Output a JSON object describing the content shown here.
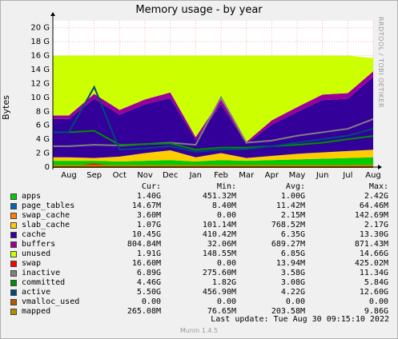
{
  "title": "Memory usage - by year",
  "side_label": "RRDTOOL / TOBI OETIKER",
  "footer": "Munin 1.4.5",
  "last_update": "Last update:  Tue Aug 30 09:15:10 2022",
  "legend_header": {
    "cur": "Cur:",
    "min": "Min:",
    "avg": "Avg:",
    "max": "Max:"
  },
  "legend": [
    {
      "name": "apps",
      "color": "#00cc00",
      "cur": "1.40G",
      "min": "451.32M",
      "avg": "1.00G",
      "max": "2.42G"
    },
    {
      "name": "page_tables",
      "color": "#0066b3",
      "cur": "14.67M",
      "min": "8.40M",
      "avg": "11.42M",
      "max": "64.46M"
    },
    {
      "name": "swap_cache",
      "color": "#ff8000",
      "cur": "3.60M",
      "min": "0.00",
      "avg": "2.15M",
      "max": "142.69M"
    },
    {
      "name": "slab_cache",
      "color": "#ffcc00",
      "cur": "1.07G",
      "min": "101.14M",
      "avg": "768.52M",
      "max": "2.17G"
    },
    {
      "name": "cache",
      "color": "#330099",
      "cur": "10.45G",
      "min": "410.42M",
      "avg": "6.35G",
      "max": "13.30G"
    },
    {
      "name": "buffers",
      "color": "#990099",
      "cur": "804.84M",
      "min": "32.06M",
      "avg": "689.27M",
      "max": "871.43M"
    },
    {
      "name": "unused",
      "color": "#ccff00",
      "cur": "1.91G",
      "min": "148.55M",
      "avg": "6.85G",
      "max": "14.66G"
    },
    {
      "name": "swap",
      "color": "#ff0000",
      "cur": "16.60M",
      "min": "0.00",
      "avg": "13.94M",
      "max": "425.02M"
    },
    {
      "name": "inactive",
      "color": "#808080",
      "cur": "6.89G",
      "min": "275.60M",
      "avg": "3.58G",
      "max": "11.34G"
    },
    {
      "name": "committed",
      "color": "#008f00",
      "cur": "4.46G",
      "min": "1.82G",
      "avg": "3.08G",
      "max": "5.84G"
    },
    {
      "name": "active",
      "color": "#00487d",
      "cur": "5.50G",
      "min": "456.90M",
      "avg": "4.22G",
      "max": "12.60G"
    },
    {
      "name": "vmalloc_used",
      "color": "#b35a00",
      "cur": "0.00",
      "min": "0.00",
      "avg": "0.00",
      "max": "0.00"
    },
    {
      "name": "mapped",
      "color": "#b38f00",
      "cur": "265.08M",
      "min": "76.65M",
      "avg": "203.58M",
      "max": "9.86G"
    }
  ],
  "chart_data": {
    "type": "area",
    "title": "Memory usage - by year",
    "ylabel": "Bytes",
    "ylim": [
      0,
      21
    ],
    "yticks": [
      "0",
      "2 G",
      "4 G",
      "6 G",
      "8 G",
      "10 G",
      "12 G",
      "14 G",
      "16 G",
      "18 G",
      "20 G"
    ],
    "categories": [
      "Aug",
      "Sep",
      "Oct",
      "Nov",
      "Dec",
      "Jan",
      "Feb",
      "Mar",
      "Apr",
      "May",
      "Jun",
      "Jul",
      "Aug"
    ],
    "grid": true,
    "total_gb": 16,
    "series": [
      {
        "name": "apps",
        "stacked": true,
        "values": [
          0.9,
          0.9,
          0.8,
          0.9,
          1.0,
          0.8,
          1.0,
          0.9,
          1.0,
          1.1,
          1.2,
          1.3,
          1.4
        ]
      },
      {
        "name": "page_tables",
        "stacked": true,
        "values": [
          0.01,
          0.01,
          0.01,
          0.01,
          0.01,
          0.01,
          0.01,
          0.01,
          0.01,
          0.01,
          0.01,
          0.01,
          0.015
        ]
      },
      {
        "name": "swap_cache",
        "stacked": true,
        "values": [
          0,
          0,
          0,
          0,
          0,
          0,
          0,
          0,
          0,
          0,
          0,
          0,
          0.004
        ]
      },
      {
        "name": "slab_cache",
        "stacked": true,
        "values": [
          0.5,
          0.4,
          0.7,
          1.1,
          1.4,
          0.6,
          1.0,
          0.4,
          0.6,
          0.8,
          0.9,
          1.0,
          1.07
        ]
      },
      {
        "name": "cache",
        "stacked": true,
        "values": [
          5.5,
          8.5,
          6.0,
          7.0,
          7.5,
          2.5,
          7.0,
          2.0,
          4.5,
          6.0,
          7.5,
          7.5,
          10.45
        ]
      },
      {
        "name": "buffers",
        "stacked": true,
        "values": [
          0.5,
          0.7,
          0.7,
          0.7,
          0.8,
          0.4,
          0.7,
          0.3,
          0.6,
          0.7,
          0.8,
          0.8,
          0.8
        ]
      },
      {
        "name": "unused",
        "stacked": true,
        "values": [
          8.6,
          5.5,
          7.8,
          6.3,
          5.3,
          11.7,
          6.3,
          12.4,
          9.3,
          7.4,
          5.6,
          5.4,
          1.91
        ]
      },
      {
        "name": "swap",
        "stacked": false,
        "values": [
          0,
          0.4,
          0,
          0,
          0,
          0,
          0,
          0,
          0,
          0,
          0,
          0,
          0.02
        ]
      },
      {
        "name": "inactive",
        "stacked": false,
        "values": [
          3.0,
          3.2,
          3.1,
          3.3,
          3.5,
          3.2,
          10.0,
          3.5,
          3.8,
          4.5,
          5.0,
          5.5,
          6.89
        ]
      },
      {
        "name": "committed",
        "stacked": false,
        "values": [
          5.0,
          5.2,
          3.2,
          3.3,
          3.4,
          2.5,
          2.8,
          2.8,
          3.0,
          3.2,
          3.5,
          4.0,
          4.46
        ]
      },
      {
        "name": "active",
        "stacked": false,
        "values": [
          5.0,
          11.5,
          2.5,
          2.7,
          3.0,
          2.2,
          2.5,
          2.6,
          3.0,
          3.5,
          4.0,
          4.5,
          5.5
        ]
      },
      {
        "name": "vmalloc_used",
        "stacked": false,
        "values": [
          0,
          0,
          0,
          0,
          0,
          0,
          0,
          0,
          0,
          0,
          0,
          0,
          0
        ]
      },
      {
        "name": "mapped",
        "stacked": false,
        "values": [
          0.2,
          0.2,
          0.2,
          0.2,
          0.2,
          0.2,
          0.2,
          0.2,
          0.2,
          0.2,
          0.2,
          0.2,
          0.27
        ]
      }
    ]
  }
}
